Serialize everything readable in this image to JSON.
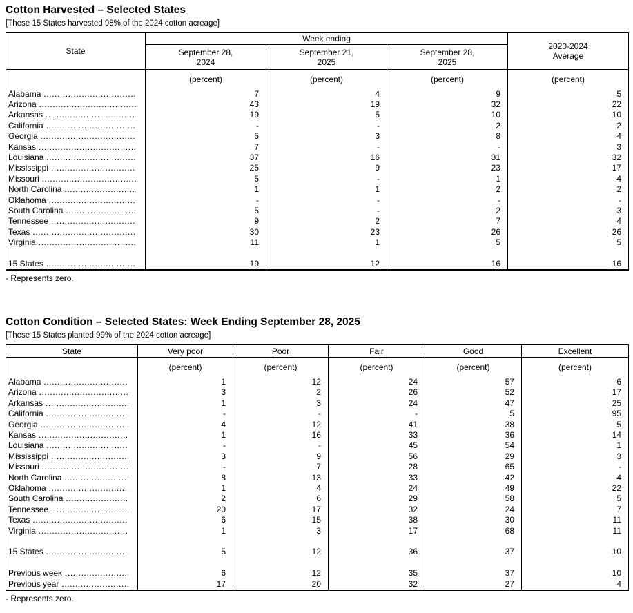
{
  "harvested": {
    "title": "Cotton Harvested – Selected States",
    "note": "[These 15 States harvested 98% of the 2024 cotton acreage]",
    "header": {
      "state": "State",
      "week_ending": "Week ending",
      "dates": [
        "September 28,\n2024",
        "September 21,\n2025",
        "September 28,\n2025"
      ],
      "average": "2020-2024\nAverage",
      "unit": "(percent)"
    },
    "groups": [
      {
        "rows": [
          {
            "label": "Alabama",
            "values": [
              "7",
              "4",
              "9",
              "5"
            ]
          },
          {
            "label": "Arizona",
            "values": [
              "43",
              "19",
              "32",
              "22"
            ]
          },
          {
            "label": "Arkansas",
            "values": [
              "19",
              "5",
              "10",
              "10"
            ]
          },
          {
            "label": "California",
            "values": [
              "-",
              "-",
              "2",
              "2"
            ]
          },
          {
            "label": "Georgia",
            "values": [
              "5",
              "3",
              "8",
              "4"
            ]
          },
          {
            "label": "Kansas",
            "values": [
              "7",
              "-",
              "-",
              "3"
            ]
          },
          {
            "label": "Louisiana",
            "values": [
              "37",
              "16",
              "31",
              "32"
            ]
          },
          {
            "label": "Mississippi",
            "values": [
              "25",
              "9",
              "23",
              "17"
            ]
          },
          {
            "label": "Missouri",
            "values": [
              "5",
              "-",
              "1",
              "4"
            ]
          },
          {
            "label": "North Carolina",
            "values": [
              "1",
              "1",
              "2",
              "2"
            ]
          },
          {
            "label": "Oklahoma",
            "values": [
              "-",
              "-",
              "-",
              "-"
            ]
          },
          {
            "label": "South Carolina",
            "values": [
              "5",
              "-",
              "2",
              "3"
            ]
          },
          {
            "label": "Tennessee",
            "values": [
              "9",
              "2",
              "7",
              "4"
            ]
          },
          {
            "label": "Texas",
            "values": [
              "30",
              "23",
              "26",
              "26"
            ]
          },
          {
            "label": "Virginia",
            "values": [
              "11",
              "1",
              "5",
              "5"
            ]
          }
        ]
      },
      {
        "rows": [
          {
            "label": "15 States",
            "values": [
              "19",
              "12",
              "16",
              "16"
            ]
          }
        ]
      }
    ],
    "footnote": "- Represents zero."
  },
  "condition": {
    "title": "Cotton Condition – Selected States: Week Ending September 28, 2025",
    "note": "[These 15 States planted 99% of the 2024 cotton acreage]",
    "header": {
      "state": "State",
      "categories": [
        "Very poor",
        "Poor",
        "Fair",
        "Good",
        "Excellent"
      ],
      "unit": "(percent)"
    },
    "groups": [
      {
        "rows": [
          {
            "label": "Alabama",
            "values": [
              "1",
              "12",
              "24",
              "57",
              "6"
            ]
          },
          {
            "label": "Arizona",
            "values": [
              "3",
              "2",
              "26",
              "52",
              "17"
            ]
          },
          {
            "label": "Arkansas",
            "values": [
              "1",
              "3",
              "24",
              "47",
              "25"
            ]
          },
          {
            "label": "California",
            "values": [
              "-",
              "-",
              "-",
              "5",
              "95"
            ]
          },
          {
            "label": "Georgia",
            "values": [
              "4",
              "12",
              "41",
              "38",
              "5"
            ]
          },
          {
            "label": "Kansas",
            "values": [
              "1",
              "16",
              "33",
              "36",
              "14"
            ]
          },
          {
            "label": "Louisiana",
            "values": [
              "-",
              "-",
              "45",
              "54",
              "1"
            ]
          },
          {
            "label": "Mississippi",
            "values": [
              "3",
              "9",
              "56",
              "29",
              "3"
            ]
          },
          {
            "label": "Missouri",
            "values": [
              "-",
              "7",
              "28",
              "65",
              "-"
            ]
          },
          {
            "label": "North Carolina",
            "values": [
              "8",
              "13",
              "33",
              "42",
              "4"
            ]
          },
          {
            "label": "Oklahoma",
            "values": [
              "1",
              "4",
              "24",
              "49",
              "22"
            ]
          },
          {
            "label": "South Carolina",
            "values": [
              "2",
              "6",
              "29",
              "58",
              "5"
            ]
          },
          {
            "label": "Tennessee",
            "values": [
              "20",
              "17",
              "32",
              "24",
              "7"
            ]
          },
          {
            "label": "Texas",
            "values": [
              "6",
              "15",
              "38",
              "30",
              "11"
            ]
          },
          {
            "label": "Virginia",
            "values": [
              "1",
              "3",
              "17",
              "68",
              "11"
            ]
          }
        ]
      },
      {
        "rows": [
          {
            "label": "15 States",
            "values": [
              "5",
              "12",
              "36",
              "37",
              "10"
            ]
          }
        ]
      },
      {
        "rows": [
          {
            "label": "Previous week",
            "values": [
              "6",
              "12",
              "35",
              "37",
              "10"
            ]
          },
          {
            "label": "Previous year",
            "values": [
              "17",
              "20",
              "32",
              "27",
              "4"
            ]
          }
        ]
      }
    ],
    "footnote": "- Represents zero."
  }
}
